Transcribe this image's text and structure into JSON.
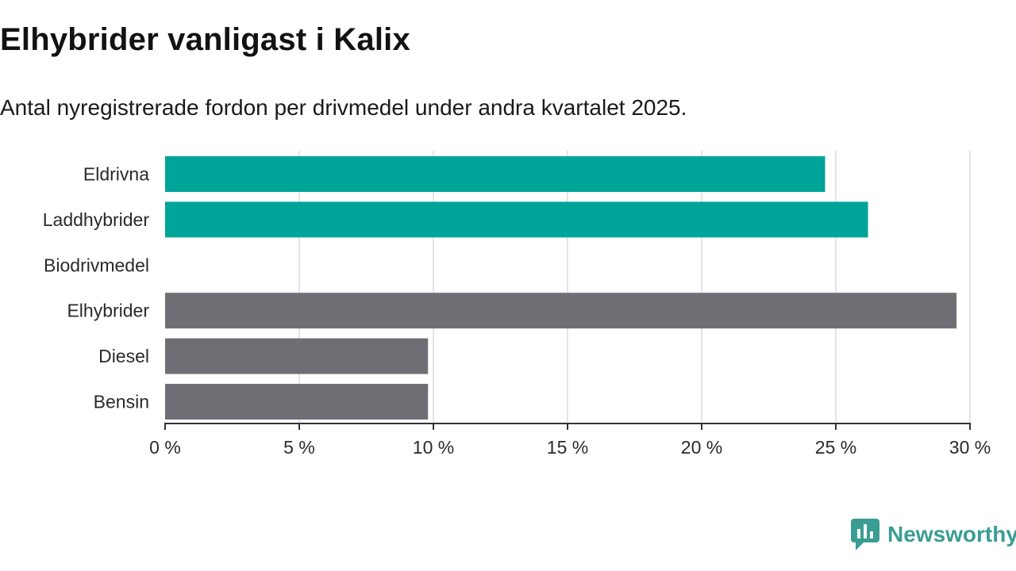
{
  "title": "Elhybrider vanligast i Kalix",
  "subtitle": "Antal nyregistrerade fordon per drivmedel under andra kvartalet 2025.",
  "brand": {
    "name": "Newsworthy",
    "icon": "newsworthy-logo-icon"
  },
  "colors": {
    "highlight": "#00a499",
    "neutral": "#6f6e74",
    "grid": "#dcdcdc",
    "axis": "#333333"
  },
  "chart_data": {
    "type": "bar",
    "orientation": "horizontal",
    "categories": [
      "Eldrivna",
      "Laddhybrider",
      "Biodrivmedel",
      "Elhybrider",
      "Diesel",
      "Bensin"
    ],
    "values": [
      24.6,
      26.2,
      0,
      29.5,
      9.8,
      9.8
    ],
    "highlight": [
      true,
      true,
      false,
      false,
      false,
      false
    ],
    "xlim": [
      0,
      30
    ],
    "xticks": [
      0,
      5,
      10,
      15,
      20,
      25,
      30
    ],
    "xtick_labels": [
      "0 %",
      "5 %",
      "10 %",
      "15 %",
      "20 %",
      "25 %",
      "30 %"
    ],
    "grid": true
  }
}
